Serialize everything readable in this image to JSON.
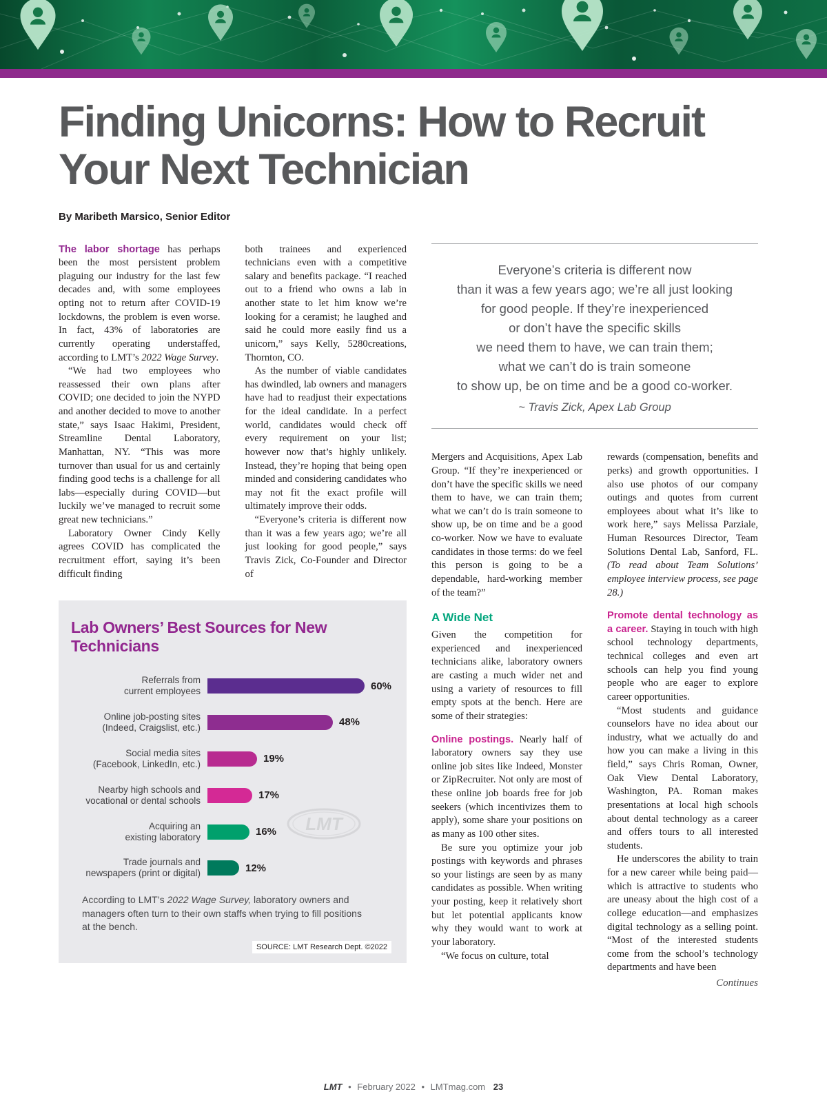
{
  "page": {
    "title_line1": "Finding Unicorns: How to Recruit",
    "title_line2": "Your Next Technician",
    "byline": "By Maribeth Marsico, Senior Editor"
  },
  "pull_quote": {
    "lines": [
      "Everyone’s criteria is different now",
      "than it was a few years ago; we’re all just looking",
      "for good people. If they’re inexperienced",
      "or don’t have the specific skills",
      "we need them to have, we can train them;",
      "what we can’t do is train someone",
      "to show up, be on time and be a good co-worker."
    ],
    "attribution": "~ Travis Zick, Apex Lab Group"
  },
  "article": {
    "col1": [
      {
        "cls": "first",
        "seg": [
          {
            "t": "The labor shortage",
            "s": "lead-purple"
          },
          {
            "t": " has perhaps been the most persistent problem plaguing our industry for the last few decades and, with some employees opting not to return after COVID-19 lockdowns, the problem is even worse. In fact, 43% of laboratories are currently operating understaffed, according to LMT’s "
          },
          {
            "t": "2022 Wage Survey",
            "s": "ital"
          },
          {
            "t": "."
          }
        ]
      },
      {
        "cls": "indent",
        "seg": [
          {
            "t": "“We had two employees who reassessed their own plans after COVID; one decided to join the NYPD and another decided to move to another state,” says Isaac Hakimi, President, Streamline Dental Laboratory, Manhattan, NY. “This was more turnover than usual for us and certainly finding good techs is a challenge for all labs—especially during COVID—but luckily we’ve managed to recruit some great new technicians.”"
          }
        ]
      },
      {
        "cls": "indent",
        "seg": [
          {
            "t": "Laboratory Owner Cindy Kelly agrees COVID has complicated the recruitment effort, saying it’s been difficult finding"
          }
        ]
      }
    ],
    "col2": [
      {
        "cls": "first",
        "seg": [
          {
            "t": "both trainees and experienced technicians even with a competitive salary and benefits package. “I reached out to a friend who owns a lab in another state to let him know we’re looking for a ceramist; he laughed and said he could more easily find us a unicorn,” says Kelly, 5280creations, Thornton, CO."
          }
        ]
      },
      {
        "cls": "indent",
        "seg": [
          {
            "t": "As the number of viable candidates has dwindled, lab owners and managers have had to readjust their expectations for the ideal candidate. In a perfect world, candidates would check off every requirement on your list; however now that’s highly unlikely. Instead, they’re hoping that being open minded and considering candidates who may not fit the exact profile will ultimately improve their odds."
          }
        ]
      },
      {
        "cls": "indent",
        "seg": [
          {
            "t": "“Everyone’s criteria is different now than it was a few years ago; we’re all just looking for good people,” says Travis Zick, Co-Founder and Director of"
          }
        ]
      }
    ],
    "col3": [
      {
        "cls": "first",
        "seg": [
          {
            "t": "Mergers and Acquisitions, Apex Lab Group. “If they’re inexperienced or don’t have the specific skills we need them to have, we can train them; what we can’t do is train someone to show up, be on time and be a good co-worker. Now we have to evaluate candidates in those terms: do we feel this person is going to be a dependable, hard-working member of the team?”"
          }
        ]
      },
      {
        "h": true,
        "cls": "section-head",
        "t": "A Wide Net"
      },
      {
        "cls": "first",
        "seg": [
          {
            "t": "Given the competition for experienced and inexperienced technicians alike, laboratory owners are casting a much wider net and using a variety of resources to fill empty spots at the bench. Here are some of their strategies:"
          }
        ]
      },
      {
        "cls": "first topgap",
        "seg": [
          {
            "t": "Online postings.",
            "s": "lead-magenta"
          },
          {
            "t": " Nearly half of laboratory owners say they use online job sites like Indeed, Monster or ZipRecruiter. Not only are most of these online job boards free for job seekers (which incentivizes them to apply), some share your positions on as many as 100 other sites."
          }
        ]
      },
      {
        "cls": "indent",
        "seg": [
          {
            "t": "Be sure you optimize your job postings with keywords and phrases so your listings are seen by as many candidates as possible. When writing your posting, keep it relatively short but let potential applicants know why they would want to work at your laboratory."
          }
        ]
      },
      {
        "cls": "indent",
        "seg": [
          {
            "t": "“We focus on culture, total"
          }
        ]
      }
    ],
    "col4": [
      {
        "cls": "first",
        "seg": [
          {
            "t": "rewards (compensation, benefits and perks) and growth opportunities. I also use photos of our company outings and quotes from current employees about what it’s like to work here,” says Melissa Parziale, Human Resources Director, Team Solutions Dental Lab, Sanford, FL. "
          },
          {
            "t": "(To read about Team Solutions’ employee interview process, see page 28.)",
            "s": "ital"
          }
        ]
      },
      {
        "cls": "first topgap",
        "seg": [
          {
            "t": "Promote dental technology as a career.",
            "s": "lead-magenta"
          },
          {
            "t": " Staying in touch with high school technology departments, technical colleges and even art schools can help you find young people who are eager to explore career opportunities."
          }
        ]
      },
      {
        "cls": "indent",
        "seg": [
          {
            "t": "“Most students and guidance counselors have no idea about our industry, what we actually do and how you can make a living in this field,” says Chris Roman, Owner, Oak View Dental Laboratory, Washington, PA. Roman makes presentations at local high schools about dental technology as a career and offers tours to all interested students."
          }
        ]
      },
      {
        "cls": "indent",
        "seg": [
          {
            "t": "He underscores the ability to train for a new career while being paid—which is attractive to students who are uneasy about the high cost of a college education—and emphasizes digital technology as a selling point. “Most of the interested students come from the school’s technology departments and have been"
          }
        ]
      }
    ],
    "continues": "Continues"
  },
  "chart_data": {
    "type": "bar",
    "orientation": "horizontal",
    "title": "Lab Owners’ Best Sources for New Technicians",
    "categories": [
      "Referrals from current employees",
      "Online job-posting sites (Indeed, Craigslist, etc.)",
      "Social media sites (Facebook, LinkedIn, etc.)",
      "Nearby high schools and vocational or dental schools",
      "Acquiring an existing laboratory",
      "Trade journals and newspapers (print or digital)"
    ],
    "categories_display": [
      "Referrals from\ncurrent employees",
      "Online job-posting sites\n(Indeed, Craigslist, etc.)",
      "Social media sites\n(Facebook, LinkedIn, etc.)",
      "Nearby high schools and\nvocational or dental schools",
      "Acquiring an\nexisting laboratory",
      "Trade journals and\nnewspapers (print or digital)"
    ],
    "values": [
      60,
      48,
      19,
      17,
      16,
      12
    ],
    "value_labels": [
      "60%",
      "48%",
      "19%",
      "17%",
      "16%",
      "12%"
    ],
    "bar_colors": [
      "#5b2d8f",
      "#8e2d90",
      "#b82b90",
      "#d42995",
      "#00a06c",
      "#007a5c"
    ],
    "xlim": [
      0,
      100
    ],
    "caption_pre": "According to LMT’s ",
    "caption_italic": "2022 Wage Survey,",
    "caption_post": " laboratory owners and managers often turn to their own staffs when trying to fill positions at the bench.",
    "source": "SOURCE: LMT Research Dept. ©2022",
    "watermark": "LMT"
  },
  "footer": {
    "brand": "LMT",
    "bullet": "•",
    "issue": "February 2022",
    "site": "LMTmag.com",
    "page": "23"
  },
  "theme": {
    "purple_bar": "#8e2a8c",
    "headline_gray": "#58595b",
    "lead_purple": "#92278f",
    "lead_magenta": "#c9238f",
    "section_teal": "#00a57c",
    "chart_bg": "#e9e9ec",
    "banner_green_dark": "#07482c",
    "banner_green_light": "#15925c"
  }
}
